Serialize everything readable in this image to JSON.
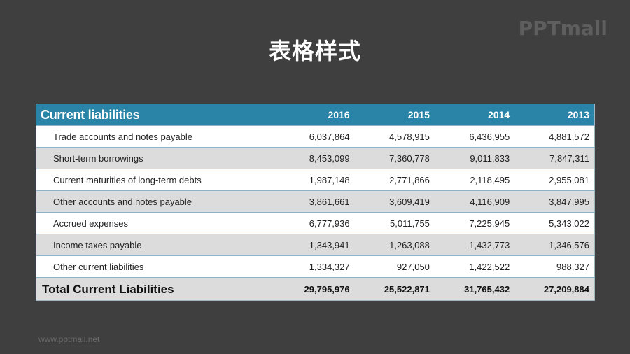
{
  "slide": {
    "title": "表格样式",
    "logo": "PPTmall",
    "footer_url": "www.pptmall.net"
  },
  "table": {
    "header": {
      "label": "Current liabilities",
      "years": [
        "2016",
        "2015",
        "2014",
        "2013"
      ]
    },
    "rows": [
      {
        "label": "Trade accounts and notes payable",
        "values": [
          "6,037,864",
          "4,578,915",
          "6,436,955",
          "4,881,572"
        ]
      },
      {
        "label": "Short-term borrowings",
        "values": [
          "8,453,099",
          "7,360,778",
          "9,011,833",
          "7,847,311"
        ]
      },
      {
        "label": "Current maturities of long-term debts",
        "values": [
          "1,987,148",
          "2,771,866",
          "2,118,495",
          "2,955,081"
        ]
      },
      {
        "label": "Other accounts and notes payable",
        "values": [
          "3,861,661",
          "3,609,419",
          "4,116,909",
          "3,847,995"
        ]
      },
      {
        "label": "Accrued expenses",
        "values": [
          "6,777,936",
          "5,011,755",
          "7,225,945",
          "5,343,022"
        ]
      },
      {
        "label": "Income taxes payable",
        "values": [
          "1,343,941",
          "1,263,088",
          "1,432,773",
          "1,346,576"
        ]
      },
      {
        "label": "Other current liabilities",
        "values": [
          "1,334,327",
          "927,050",
          "1,422,522",
          "988,327"
        ]
      }
    ],
    "total": {
      "label": "Total Current Liabilities",
      "values": [
        "29,795,976",
        "25,522,871",
        "31,765,432",
        "27,209,884"
      ]
    }
  },
  "colors": {
    "background": "#3f3f3f",
    "header_bg": "#2a84a8",
    "stripe": "#dcdcdc",
    "row_border": "#8fb2c4"
  }
}
